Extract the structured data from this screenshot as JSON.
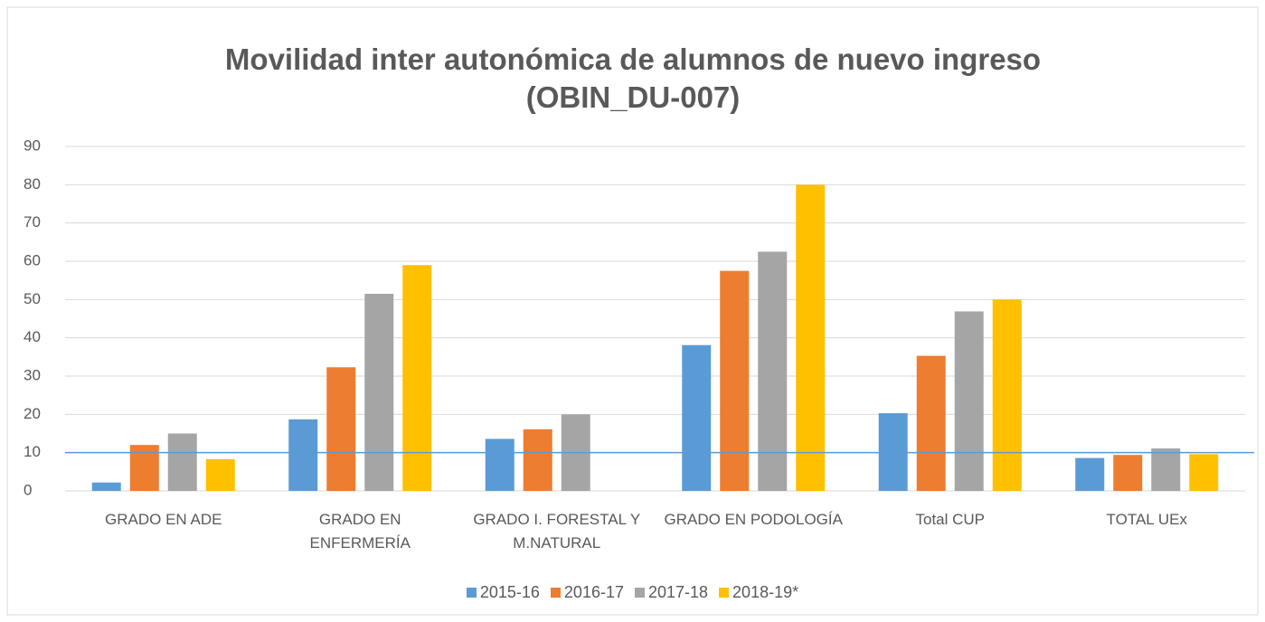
{
  "chart_data": {
    "type": "bar",
    "title": "Movilidad inter autonómica de alumnos de nuevo ingreso (OBIN_DU-007)",
    "categories": [
      "GRADO EN ADE",
      "GRADO EN ENFERMERÍA",
      "GRADO I. FORESTAL Y M.NATURAL",
      "GRADO EN PODOLOGÍA",
      "Total CUP",
      "TOTAL UEx"
    ],
    "series": [
      {
        "name": "2015-16",
        "color": "#5b9bd5",
        "values": [
          2.2,
          18.7,
          13.6,
          38.1,
          20.3,
          8.6
        ]
      },
      {
        "name": "2016-17",
        "color": "#ed7d31",
        "values": [
          12,
          32.3,
          16.1,
          57.5,
          35.3,
          9.4
        ]
      },
      {
        "name": "2017-18",
        "color": "#a5a5a5",
        "values": [
          15,
          51.5,
          20,
          62.5,
          46.9,
          11.1
        ]
      },
      {
        "name": "2018-19*",
        "color": "#ffc000",
        "values": [
          8.3,
          59,
          null,
          80,
          50,
          9.6
        ]
      }
    ],
    "reference_line": {
      "value": 10,
      "color": "#5b9bd5"
    },
    "ylim": [
      0,
      90
    ],
    "yticks": [
      0,
      10,
      20,
      30,
      40,
      50,
      60,
      70,
      80,
      90
    ],
    "grid": true,
    "legend": "bottom"
  }
}
